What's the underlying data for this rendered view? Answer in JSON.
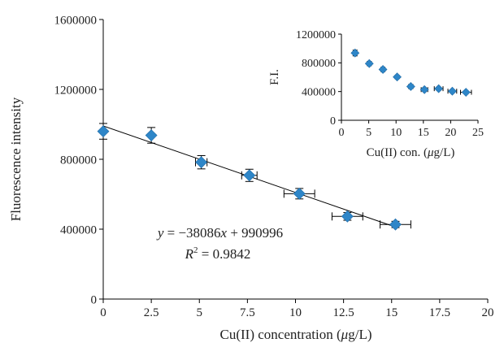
{
  "chart_data": [
    {
      "type": "scatter",
      "xlabel_main": "Cu(II) concentration (",
      "xlabel_mu": "μ",
      "xlabel_unit": "g/L)",
      "ylabel": "Fluorescence intensity",
      "xlim": [
        0,
        20
      ],
      "ylim": [
        0,
        1600000
      ],
      "xticks": [
        "0",
        "2.5",
        "5",
        "7.5",
        "10",
        "12.5",
        "15",
        "17.5",
        "20"
      ],
      "xtick_values": [
        0,
        2.5,
        5,
        7.5,
        10,
        12.5,
        15,
        17.5,
        20
      ],
      "yticks": [
        "0",
        "400000",
        "800000",
        "1200000",
        "1600000"
      ],
      "ytick_values": [
        0,
        400000,
        800000,
        1200000,
        1600000
      ],
      "grid": false,
      "points": [
        {
          "x": 0,
          "y": 960000,
          "yerr": 45000,
          "xerr": 0
        },
        {
          "x": 2.5,
          "y": 937000,
          "yerr": 45000,
          "xerr": 0
        },
        {
          "x": 5.1,
          "y": 783000,
          "yerr": 38000,
          "xerr": 0.3
        },
        {
          "x": 7.6,
          "y": 708000,
          "yerr": 35000,
          "xerr": 0.4
        },
        {
          "x": 10.2,
          "y": 603000,
          "yerr": 30000,
          "xerr": 0.8
        },
        {
          "x": 12.7,
          "y": 473000,
          "yerr": 22000,
          "xerr": 0.8
        },
        {
          "x": 15.2,
          "y": 427000,
          "yerr": 18000,
          "xerr": 0.8
        }
      ],
      "fit": {
        "slope": -38086,
        "intercept": 990996,
        "x_range": [
          0,
          15.2
        ]
      },
      "equation": {
        "y_var": "y",
        "eq_part": " = −38086",
        "x_var": "x",
        "rest": " + 990996",
        "r_var": "R",
        "r_sup": "2",
        "r_rest": " = 0.9842"
      }
    },
    {
      "type": "scatter",
      "xlabel_main": "Cu(II) con. (",
      "xlabel_mu": "μ",
      "xlabel_unit": "g/L)",
      "ylabel": "F.I.",
      "xlim": [
        0,
        25
      ],
      "ylim": [
        0,
        1200000
      ],
      "xticks": [
        "0",
        "5",
        "10",
        "15",
        "20",
        "25"
      ],
      "xtick_values": [
        0,
        5,
        10,
        15,
        20,
        25
      ],
      "yticks": [
        "0",
        "400000",
        "800000",
        "1200000"
      ],
      "ytick_values": [
        0,
        400000,
        800000,
        1200000
      ],
      "grid": false,
      "points": [
        {
          "x": 2.5,
          "y": 937000,
          "yerr": 40000,
          "xerr": 0
        },
        {
          "x": 5.1,
          "y": 790000,
          "yerr": 30000,
          "xerr": 0
        },
        {
          "x": 7.6,
          "y": 708000,
          "yerr": 30000,
          "xerr": 0
        },
        {
          "x": 10.2,
          "y": 603000,
          "yerr": 25000,
          "xerr": 0
        },
        {
          "x": 12.7,
          "y": 470000,
          "yerr": 22000,
          "xerr": 0.4
        },
        {
          "x": 15.2,
          "y": 427000,
          "yerr": 20000,
          "xerr": 0.6
        },
        {
          "x": 17.8,
          "y": 440000,
          "yerr": 20000,
          "xerr": 0.8
        },
        {
          "x": 20.3,
          "y": 405000,
          "yerr": 18000,
          "xerr": 0.8
        },
        {
          "x": 22.8,
          "y": 390000,
          "yerr": 15000,
          "xerr": 1.0
        }
      ]
    }
  ]
}
